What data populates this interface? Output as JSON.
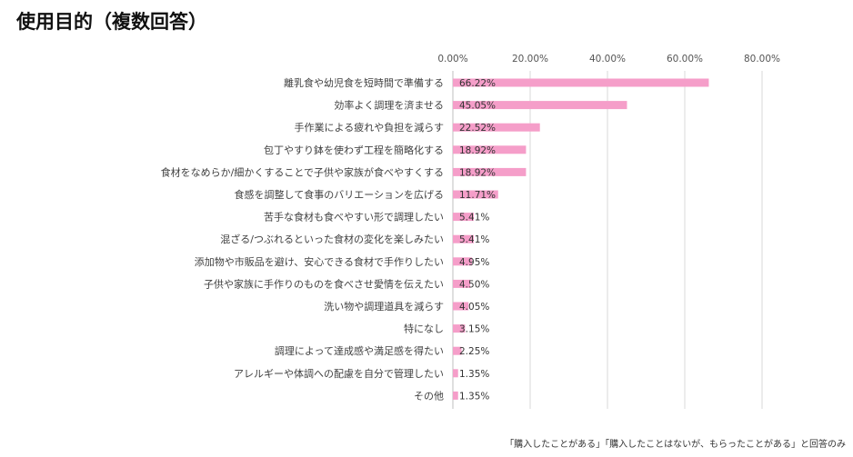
{
  "title": "使用目的（複数回答）",
  "footnote": "「購入したことがある」「購入したことはないが、もらったことがある」と回答のみ",
  "chart_data": {
    "type": "bar",
    "orientation": "horizontal",
    "title": "",
    "xlabel": "",
    "ylabel": "",
    "xlim": [
      0,
      80
    ],
    "ticks": [
      "0.00%",
      "20.00%",
      "40.00%",
      "60.00%",
      "80.00%"
    ],
    "grid": true,
    "bar_color": "#f59ec9",
    "categories": [
      "離乳食や幼児食を短時間で準備する",
      "効率よく調理を済ませる",
      "手作業による疲れや負担を減らす",
      "包丁やすり鉢を使わず工程を簡略化する",
      "食材をなめらか/細かくすることで子供や家族が食べやすくする",
      "食感を調整して食事のバリエーションを広げる",
      "苦手な食材も食べやすい形で調理したい",
      "混ざる/つぶれるといった食材の変化を楽しみたい",
      "添加物や市販品を避け、安心できる食材で手作りしたい",
      "子供や家族に手作りのものを食べさせ愛情を伝えたい",
      "洗い物や調理道具を減らす",
      "特になし",
      "調理によって達成感や満足感を得たい",
      "アレルギーや体調への配慮を自分で管理したい",
      "その他"
    ],
    "values": [
      66.22,
      45.05,
      22.52,
      18.92,
      18.92,
      11.71,
      5.41,
      5.41,
      4.95,
      4.5,
      4.05,
      3.15,
      2.25,
      1.35,
      1.35
    ],
    "value_labels": [
      "66.22%",
      "45.05%",
      "22.52%",
      "18.92%",
      "18.92%",
      "11.71%",
      "5.41%",
      "5.41%",
      "4.95%",
      "4.50%",
      "4.05%",
      "3.15%",
      "2.25%",
      "1.35%",
      "1.35%"
    ]
  }
}
